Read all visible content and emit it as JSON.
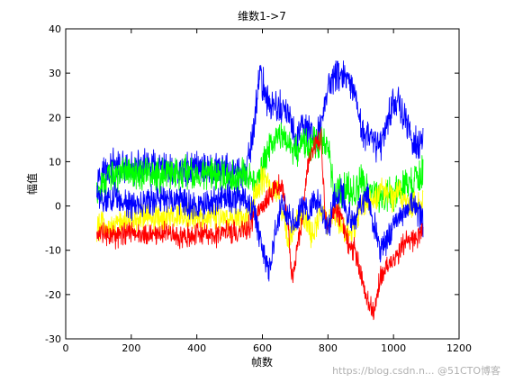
{
  "chart_data": {
    "type": "line",
    "title": "维数1->7",
    "xlabel": "帧数",
    "ylabel": "幅值",
    "xlim": [
      0,
      1200
    ],
    "ylim": [
      -30,
      40
    ],
    "xticks": [
      0,
      200,
      400,
      600,
      800,
      1000,
      1200
    ],
    "yticks": [
      -30,
      -20,
      -10,
      0,
      10,
      20,
      30,
      40
    ],
    "grid": false,
    "legend": "none",
    "series": [
      {
        "color": "#0000ff",
        "x": [
          95,
          150,
          200,
          250,
          300,
          350,
          400,
          450,
          500,
          550,
          575,
          590,
          620,
          650,
          680,
          700,
          720,
          740,
          760,
          780,
          800,
          820,
          840,
          860,
          880,
          900,
          920,
          940,
          960,
          980,
          1000,
          1020,
          1040,
          1060,
          1080,
          1090
        ],
        "values": [
          7,
          9,
          8,
          9,
          8,
          8,
          9,
          8,
          8,
          7,
          18,
          30,
          23,
          22,
          21,
          14,
          18,
          17,
          14,
          19,
          27,
          29,
          30,
          28,
          25,
          18,
          16,
          14,
          14,
          19,
          24,
          23,
          18,
          15,
          13,
          14
        ],
        "noise": 3
      },
      {
        "color": "#00ff00",
        "x": [
          95,
          150,
          200,
          250,
          300,
          350,
          400,
          450,
          500,
          550,
          575,
          600,
          620,
          650,
          680,
          700,
          720,
          750,
          780,
          800,
          820,
          850,
          880,
          900,
          920,
          950,
          980,
          1000,
          1020,
          1050,
          1080,
          1090
        ],
        "values": [
          4,
          7,
          8,
          7,
          7,
          8,
          7,
          7,
          6,
          7,
          6,
          8,
          13,
          16,
          15,
          12,
          14,
          14,
          15,
          13,
          2,
          4,
          3,
          6,
          4,
          3,
          3,
          2,
          4,
          5,
          7,
          8
        ],
        "noise": 3
      },
      {
        "color": "#ffff00",
        "x": [
          95,
          150,
          200,
          250,
          300,
          350,
          400,
          450,
          500,
          550,
          580,
          600,
          650,
          680,
          700,
          720,
          750,
          780,
          800,
          820,
          850,
          880,
          900,
          920,
          950,
          980,
          1000,
          1020,
          1050,
          1080,
          1090
        ],
        "values": [
          -5,
          -4,
          -3,
          -2,
          -3,
          -2,
          -3,
          -2,
          -3,
          -3,
          3,
          6,
          3,
          -8,
          -4,
          -3,
          -6,
          -2,
          -4,
          -1,
          -6,
          -5,
          0,
          1,
          2,
          4,
          1,
          3,
          0,
          0,
          2
        ],
        "noise": 2.5
      },
      {
        "color": "#ff0000",
        "x": [
          95,
          150,
          200,
          250,
          300,
          350,
          400,
          450,
          500,
          550,
          580,
          600,
          620,
          640,
          660,
          680,
          690,
          700,
          720,
          740,
          760,
          780,
          790,
          800,
          820,
          840,
          860,
          880,
          900,
          920,
          940,
          960,
          980,
          1000,
          1020,
          1040,
          1060,
          1080,
          1090
        ],
        "values": [
          -6,
          -7,
          -6,
          -7,
          -6,
          -7,
          -6,
          -7,
          -6,
          -6,
          -2,
          0,
          2,
          4,
          5,
          -5,
          -17,
          -12,
          -4,
          10,
          14,
          15,
          -2,
          -5,
          0,
          -3,
          -8,
          -10,
          -15,
          -22,
          -24,
          -16,
          -14,
          -12,
          -10,
          -8,
          -8,
          -6,
          -5
        ],
        "noise": 2
      },
      {
        "color": "#0000ff",
        "x": [
          95,
          150,
          200,
          250,
          300,
          350,
          400,
          450,
          500,
          550,
          575,
          600,
          620,
          640,
          660,
          680,
          700,
          720,
          740,
          760,
          780,
          800,
          820,
          840,
          860,
          880,
          900,
          920,
          940,
          960,
          980,
          1000,
          1020,
          1040,
          1060,
          1080,
          1090
        ],
        "values": [
          1,
          2,
          0,
          1,
          2,
          1,
          0,
          1,
          2,
          1,
          -2,
          -10,
          -14,
          -6,
          0,
          -3,
          -4,
          0,
          -2,
          2,
          0,
          -6,
          2,
          4,
          -2,
          -4,
          0,
          4,
          -4,
          -10,
          -8,
          -4,
          -2,
          0,
          0,
          -2,
          -4
        ],
        "noise": 2.5
      }
    ],
    "watermark": "https://blog.csdn.n... @51CTO博客"
  }
}
